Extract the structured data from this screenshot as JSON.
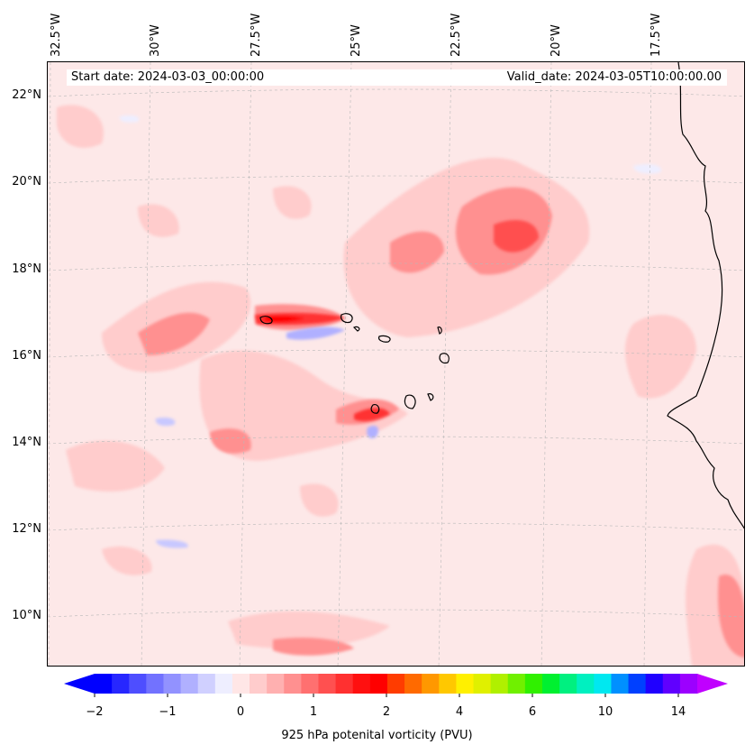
{
  "header": {
    "start_date": "Start date: 2024-03-03_00:00:00",
    "valid_date": "Valid_date: 2024-03-05T10:00:00.00"
  },
  "axes": {
    "lon_labels": [
      "32.5°W",
      "30°W",
      "27.5°W",
      "25°W",
      "22.5°W",
      "20°W",
      "17.5°W"
    ],
    "lat_labels": [
      "22°N",
      "20°N",
      "18°N",
      "16°N",
      "14°N",
      "12°N",
      "10°N"
    ]
  },
  "colorbar": {
    "label": "925 hPa potenital vorticity (PVU)",
    "tick_labels": [
      "−2",
      "−1",
      "0",
      "1",
      "2",
      "4",
      "6",
      "10",
      "14"
    ],
    "colors": [
      "#0000ff",
      "#2727ff",
      "#4e4eff",
      "#7272ff",
      "#9292ff",
      "#b0b0ff",
      "#d0d0ff",
      "#eeeeff",
      "#ffe6e6",
      "#ffcccc",
      "#ffb0b0",
      "#ff9090",
      "#ff7070",
      "#ff5050",
      "#ff3030",
      "#ff1010",
      "#ff0000",
      "#ff3c00",
      "#ff6a00",
      "#ff9800",
      "#ffc800",
      "#fff000",
      "#e0f000",
      "#b0f000",
      "#70f000",
      "#30f000",
      "#00f030",
      "#00f080",
      "#00f0c0",
      "#00e8f0",
      "#0090ff",
      "#0040ff",
      "#2000ff",
      "#6000ff",
      "#9c00ff"
    ],
    "under_color": "#0000ff",
    "over_color": "#c000ff"
  },
  "map": {
    "background_color": "#fde8e8",
    "coastline_color": "#000000"
  }
}
